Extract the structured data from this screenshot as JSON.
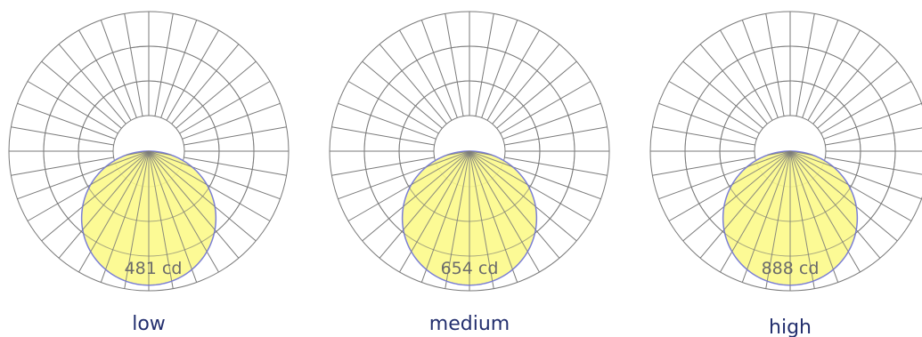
{
  "colors": {
    "background": "#ffffff",
    "grid_line": "#7a7a7a",
    "light_fill": "#fcf98a",
    "light_outline": "#7b7fd6",
    "label_text": "#232f6e",
    "peak_text": "#6b6b6b"
  },
  "chart_data": [
    {
      "type": "polar",
      "peak_value": 481,
      "peak_unit": "cd",
      "peak_label": "481 cd",
      "title": "low",
      "grid": true,
      "distribution": "downward lobe"
    },
    {
      "type": "polar",
      "peak_value": 654,
      "peak_unit": "cd",
      "peak_label": "654 cd",
      "title": "medium",
      "grid": true,
      "distribution": "downward lobe"
    },
    {
      "type": "polar",
      "peak_value": 888,
      "peak_unit": "cd",
      "peak_label": "888 cd",
      "title": "high",
      "grid": true,
      "distribution": "downward lobe"
    }
  ]
}
